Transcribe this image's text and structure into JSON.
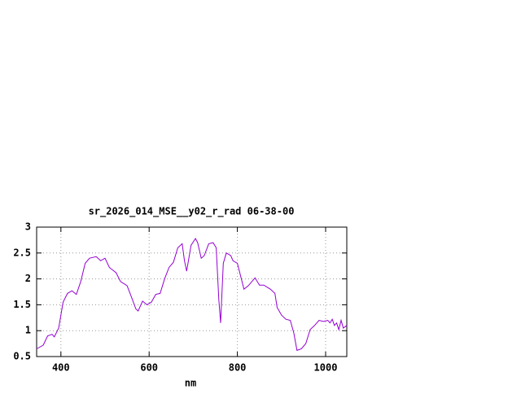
{
  "chart_data": {
    "type": "line",
    "title": "sr_2026_014_MSE__y02_r_rad 06-38-00",
    "x_label": "nm",
    "xlim": [
      345,
      1048
    ],
    "ylim": [
      0.5,
      3
    ],
    "xticks": [
      400,
      600,
      800,
      1000
    ],
    "yticks": [
      0.5,
      1,
      1.5,
      2,
      2.5,
      3
    ],
    "grid": true,
    "series": [
      {
        "color": "#9400d3",
        "x": [
          345,
          360,
          370,
          380,
          385,
          395,
          405,
          415,
          425,
          435,
          445,
          455,
          465,
          480,
          490,
          500,
          510,
          525,
          535,
          550,
          560,
          570,
          575,
          585,
          595,
          605,
          615,
          625,
          635,
          645,
          655,
          665,
          675,
          680,
          685,
          695,
          705,
          710,
          718,
          725,
          735,
          745,
          752,
          758,
          762,
          768,
          775,
          785,
          790,
          800,
          815,
          825,
          840,
          850,
          860,
          875,
          885,
          890,
          900,
          910,
          920,
          928,
          935,
          945,
          955,
          965,
          975,
          985,
          995,
          1005,
          1010,
          1015,
          1020,
          1025,
          1030,
          1035,
          1040,
          1048
        ],
        "values": [
          0.65,
          0.72,
          0.9,
          0.93,
          0.88,
          1.05,
          1.55,
          1.72,
          1.77,
          1.7,
          1.95,
          2.3,
          2.4,
          2.43,
          2.35,
          2.4,
          2.22,
          2.12,
          1.95,
          1.87,
          1.65,
          1.42,
          1.38,
          1.57,
          1.5,
          1.55,
          1.7,
          1.72,
          2.0,
          2.22,
          2.32,
          2.6,
          2.68,
          2.35,
          2.15,
          2.65,
          2.78,
          2.7,
          2.4,
          2.45,
          2.68,
          2.7,
          2.6,
          1.6,
          1.15,
          2.3,
          2.5,
          2.45,
          2.35,
          2.3,
          1.8,
          1.87,
          2.02,
          1.88,
          1.88,
          1.8,
          1.72,
          1.45,
          1.3,
          1.22,
          1.2,
          0.95,
          0.62,
          0.65,
          0.75,
          1.02,
          1.1,
          1.2,
          1.18,
          1.2,
          1.15,
          1.22,
          1.1,
          1.15,
          1.02,
          1.2,
          1.05,
          1.1
        ]
      }
    ]
  }
}
